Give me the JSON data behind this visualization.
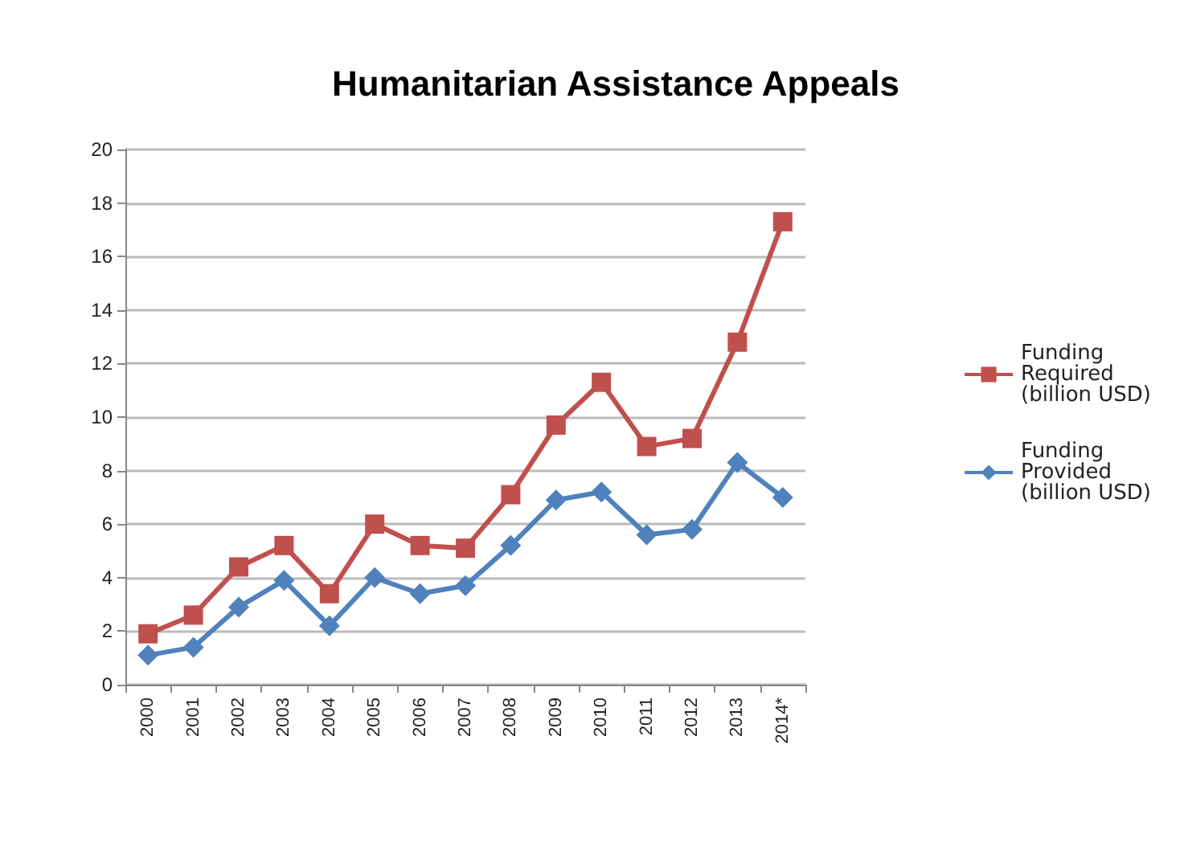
{
  "chart_data": {
    "type": "line",
    "title": "Humanitarian Assistance Appeals",
    "categories": [
      "2000",
      "2001",
      "2002",
      "2003",
      "2004",
      "2005",
      "2006",
      "2007",
      "2008",
      "2009",
      "2010",
      "2011",
      "2012",
      "2013",
      "2014*"
    ],
    "series": [
      {
        "name": "Funding Required (billion USD)",
        "color": "#c0504d",
        "marker": "square",
        "values": [
          1.9,
          2.6,
          4.4,
          5.2,
          3.4,
          6.0,
          5.2,
          5.1,
          7.1,
          9.7,
          11.3,
          8.9,
          9.2,
          12.8,
          17.3
        ]
      },
      {
        "name": "Funding Provided (billion USD)",
        "color": "#4f81bd",
        "marker": "diamond",
        "values": [
          1.1,
          1.4,
          2.9,
          3.9,
          2.2,
          4.0,
          3.4,
          3.7,
          5.2,
          6.9,
          7.2,
          5.6,
          5.8,
          8.3,
          7.0
        ]
      }
    ],
    "ylim": [
      0,
      20
    ],
    "yticks": [
      0,
      2,
      4,
      6,
      8,
      10,
      12,
      14,
      16,
      18,
      20
    ],
    "grid": "y",
    "legend": "right",
    "line_style": "solid"
  }
}
